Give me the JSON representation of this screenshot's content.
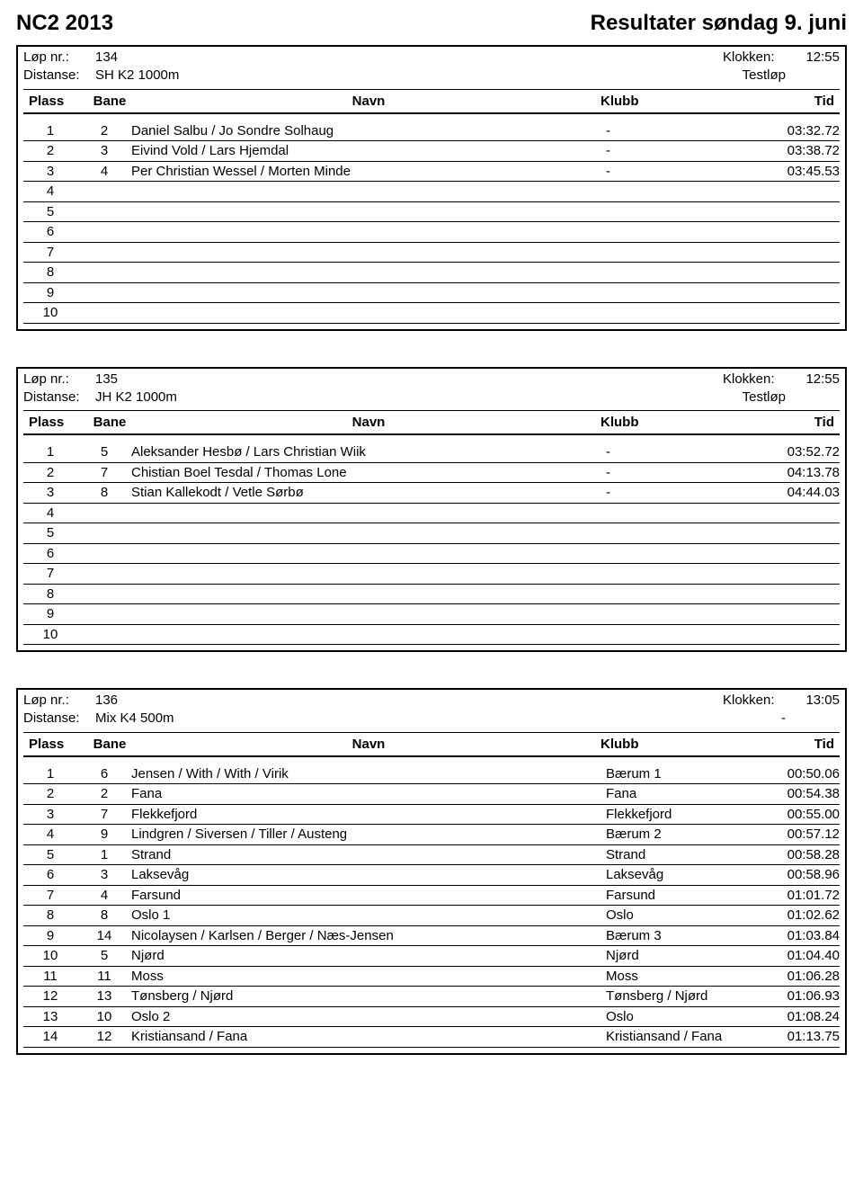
{
  "header": {
    "left": "NC2 2013",
    "right": "Resultater søndag 9. juni"
  },
  "labels": {
    "lop": "Løp nr.:",
    "klokken": "Klokken:",
    "distanse": "Distanse:",
    "plass": "Plass",
    "bane": "Bane",
    "navn": "Navn",
    "klubb": "Klubb",
    "tid": "Tid"
  },
  "races": [
    {
      "nr": "134",
      "klokken": "12:55",
      "distanse": "SH K2 1000m",
      "type": "Testløp",
      "rows": [
        {
          "plass": "1",
          "bane": "2",
          "navn": "Daniel Salbu / Jo Sondre Solhaug",
          "klubb": "-",
          "tid": "03:32.72"
        },
        {
          "plass": "2",
          "bane": "3",
          "navn": "Eivind Vold / Lars Hjemdal",
          "klubb": "-",
          "tid": "03:38.72"
        },
        {
          "plass": "3",
          "bane": "4",
          "navn": "Per Christian Wessel / Morten Minde",
          "klubb": "-",
          "tid": "03:45.53"
        },
        {
          "plass": "4",
          "bane": "",
          "navn": "",
          "klubb": "",
          "tid": ""
        },
        {
          "plass": "5",
          "bane": "",
          "navn": "",
          "klubb": "",
          "tid": ""
        },
        {
          "plass": "6",
          "bane": "",
          "navn": "",
          "klubb": "",
          "tid": ""
        },
        {
          "plass": "7",
          "bane": "",
          "navn": "",
          "klubb": "",
          "tid": ""
        },
        {
          "plass": "8",
          "bane": "",
          "navn": "",
          "klubb": "",
          "tid": ""
        },
        {
          "plass": "9",
          "bane": "",
          "navn": "",
          "klubb": "",
          "tid": ""
        },
        {
          "plass": "10",
          "bane": "",
          "navn": "",
          "klubb": "",
          "tid": ""
        }
      ]
    },
    {
      "nr": "135",
      "klokken": "12:55",
      "distanse": "JH K2 1000m",
      "type": "Testløp",
      "rows": [
        {
          "plass": "1",
          "bane": "5",
          "navn": "Aleksander Hesbø / Lars Christian Wiik",
          "klubb": "-",
          "tid": "03:52.72"
        },
        {
          "plass": "2",
          "bane": "7",
          "navn": "Chistian Boel Tesdal / Thomas Lone",
          "klubb": "-",
          "tid": "04:13.78"
        },
        {
          "plass": "3",
          "bane": "8",
          "navn": "Stian Kallekodt / Vetle Sørbø",
          "klubb": "-",
          "tid": "04:44.03"
        },
        {
          "plass": "4",
          "bane": "",
          "navn": "",
          "klubb": "",
          "tid": ""
        },
        {
          "plass": "5",
          "bane": "",
          "navn": "",
          "klubb": "",
          "tid": ""
        },
        {
          "plass": "6",
          "bane": "",
          "navn": "",
          "klubb": "",
          "tid": ""
        },
        {
          "plass": "7",
          "bane": "",
          "navn": "",
          "klubb": "",
          "tid": ""
        },
        {
          "plass": "8",
          "bane": "",
          "navn": "",
          "klubb": "",
          "tid": ""
        },
        {
          "plass": "9",
          "bane": "",
          "navn": "",
          "klubb": "",
          "tid": ""
        },
        {
          "plass": "10",
          "bane": "",
          "navn": "",
          "klubb": "",
          "tid": ""
        }
      ]
    },
    {
      "nr": "136",
      "klokken": "13:05",
      "distanse": "Mix K4 500m",
      "type": "-",
      "rows": [
        {
          "plass": "1",
          "bane": "6",
          "navn": "Jensen / With / With / Virik",
          "klubb": "Bærum 1",
          "tid": "00:50.06"
        },
        {
          "plass": "2",
          "bane": "2",
          "navn": "Fana",
          "klubb": "Fana",
          "tid": "00:54.38"
        },
        {
          "plass": "3",
          "bane": "7",
          "navn": "Flekkefjord",
          "klubb": "Flekkefjord",
          "tid": "00:55.00"
        },
        {
          "plass": "4",
          "bane": "9",
          "navn": "Lindgren / Siversen / Tiller / Austeng",
          "klubb": "Bærum 2",
          "tid": "00:57.12"
        },
        {
          "plass": "5",
          "bane": "1",
          "navn": "Strand",
          "klubb": "Strand",
          "tid": "00:58.28"
        },
        {
          "plass": "6",
          "bane": "3",
          "navn": "Laksevåg",
          "klubb": "Laksevåg",
          "tid": "00:58.96"
        },
        {
          "plass": "7",
          "bane": "4",
          "navn": "Farsund",
          "klubb": "Farsund",
          "tid": "01:01.72"
        },
        {
          "plass": "8",
          "bane": "8",
          "navn": "Oslo 1",
          "klubb": "Oslo",
          "tid": "01:02.62"
        },
        {
          "plass": "9",
          "bane": "14",
          "navn": "Nicolaysen / Karlsen / Berger / Næs-Jensen",
          "klubb": "Bærum 3",
          "tid": "01:03.84"
        },
        {
          "plass": "10",
          "bane": "5",
          "navn": "Njørd",
          "klubb": "Njørd",
          "tid": "01:04.40"
        },
        {
          "plass": "11",
          "bane": "11",
          "navn": "Moss",
          "klubb": "Moss",
          "tid": "01:06.28"
        },
        {
          "plass": "12",
          "bane": "13",
          "navn": "Tønsberg / Njørd",
          "klubb": "Tønsberg / Njørd",
          "tid": "01:06.93"
        },
        {
          "plass": "13",
          "bane": "10",
          "navn": "Oslo 2",
          "klubb": "Oslo",
          "tid": "01:08.24"
        },
        {
          "plass": "14",
          "bane": "12",
          "navn": "Kristiansand / Fana",
          "klubb": "Kristiansand / Fana",
          "tid": "01:13.75"
        }
      ]
    }
  ]
}
